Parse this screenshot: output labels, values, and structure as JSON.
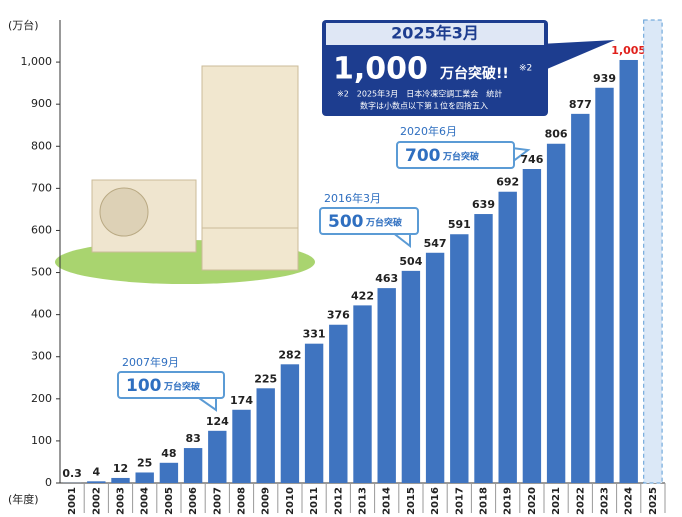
{
  "chart_data": {
    "type": "bar",
    "y_axis_label": "(万台)",
    "x_axis_label": "(年度)",
    "categories": [
      "2001",
      "2002",
      "2003",
      "2004",
      "2005",
      "2006",
      "2007",
      "2008",
      "2009",
      "2010",
      "2011",
      "2012",
      "2013",
      "2014",
      "2015",
      "2016",
      "2017",
      "2018",
      "2019",
      "2020",
      "2021",
      "2022",
      "2023",
      "2024",
      "2025"
    ],
    "values": [
      0.3,
      4,
      12,
      25,
      48,
      83,
      124,
      174,
      225,
      282,
      331,
      376,
      422,
      463,
      504,
      547,
      591,
      639,
      692,
      746,
      806,
      877,
      939,
      1005,
      null
    ],
    "value_labels": [
      "0.3",
      "4",
      "12",
      "25",
      "48",
      "83",
      "124",
      "174",
      "225",
      "282",
      "331",
      "376",
      "422",
      "463",
      "504",
      "547",
      "591",
      "639",
      "692",
      "746",
      "806",
      "877",
      "939",
      "1,005",
      null
    ],
    "color": "#3f74c0",
    "highlight_label_color": "#e0201b",
    "ylim": [
      0,
      1100
    ],
    "yticks": [
      0,
      100,
      200,
      300,
      400,
      500,
      600,
      700,
      800,
      900,
      {
        "value": 1000,
        "label": "1,000"
      }
    ],
    "headline": {
      "date": "2025年3月",
      "value": "1,000",
      "unit": "万台突破!!",
      "mark": "※2",
      "note1": "※2　2025年3月　日本冷凍空調工業会　統計",
      "note2": "数字は小数点以下第１位を四捨五入"
    },
    "annotations": [
      {
        "date": "2007年9月",
        "value": "100",
        "unit": "万台突破"
      },
      {
        "date": "2016年3月",
        "value": "500",
        "unit": "万台突破"
      },
      {
        "date": "2020年6月",
        "value": "700",
        "unit": "万台突破"
      }
    ]
  }
}
